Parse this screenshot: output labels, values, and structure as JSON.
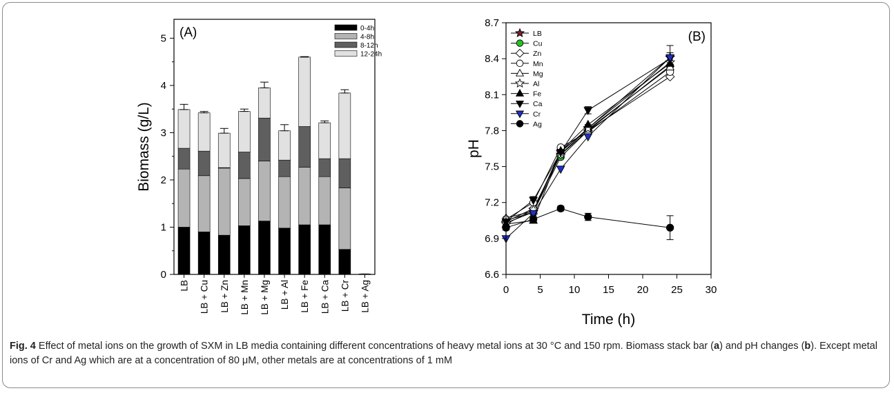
{
  "chart_data": [
    {
      "panel": "(A)",
      "type": "bar",
      "stacked": true,
      "ylabel": "Biomass (g/L)",
      "xlabel": "",
      "ylim": [
        0,
        5.4
      ],
      "yticks": [
        0,
        1,
        2,
        3,
        4,
        5
      ],
      "categories": [
        "LB",
        "LB + Cu",
        "LB + Zn",
        "LB + Mn",
        "LB + Mg",
        "LB + Al",
        "LB + Fe",
        "LB + Ca",
        "LB + Cr",
        "LB + Ag"
      ],
      "series": [
        {
          "name": "0-4h",
          "color": "#000000",
          "values": [
            1.0,
            0.9,
            0.83,
            1.03,
            1.13,
            0.98,
            1.05,
            1.05,
            0.53,
            0.0
          ]
        },
        {
          "name": "4-8h",
          "color": "#b4b4b4",
          "values": [
            1.23,
            1.19,
            1.42,
            1.0,
            1.27,
            1.09,
            1.22,
            1.02,
            1.3,
            0.0
          ]
        },
        {
          "name": "8-12h",
          "color": "#5f5f5f",
          "values": [
            0.44,
            0.52,
            0.01,
            0.56,
            0.91,
            0.35,
            0.86,
            0.38,
            0.62,
            0.0
          ]
        },
        {
          "name": "12-24h",
          "color": "#e1e1e1",
          "values": [
            0.82,
            0.81,
            0.73,
            0.86,
            0.64,
            0.62,
            1.47,
            0.76,
            1.39,
            0.01
          ]
        }
      ],
      "errors": [
        0.11,
        0.03,
        0.1,
        0.05,
        0.12,
        0.13,
        0.01,
        0.04,
        0.07,
        0.0
      ],
      "legend_position": "top-right"
    },
    {
      "panel": "(B)",
      "type": "line",
      "xlabel": "Time (h)",
      "ylabel": "pH",
      "xlim": [
        0,
        30
      ],
      "ylim": [
        6.6,
        8.7
      ],
      "xticks": [
        0,
        5,
        10,
        15,
        20,
        25,
        30
      ],
      "yticks": [
        6.6,
        6.9,
        7.2,
        7.5,
        7.8,
        8.1,
        8.4,
        8.7
      ],
      "x": [
        0,
        4,
        8,
        12,
        24
      ],
      "series": [
        {
          "name": "LB",
          "marker": "star",
          "fill": "#7b1e2b",
          "values": [
            7.03,
            7.12,
            7.62,
            7.82,
            8.41
          ]
        },
        {
          "name": "Cu",
          "marker": "circle",
          "fill": "#22c322",
          "values": [
            7.05,
            7.12,
            7.58,
            7.8,
            8.34
          ]
        },
        {
          "name": "Zn",
          "marker": "diamond",
          "fill": "#ffffff",
          "values": [
            7.04,
            7.15,
            7.6,
            7.8,
            8.25
          ]
        },
        {
          "name": "Mn",
          "marker": "circle",
          "fill": "#ffffff",
          "values": [
            7.06,
            7.2,
            7.66,
            7.79,
            8.29
          ]
        },
        {
          "name": "Mg",
          "marker": "triangle-up",
          "fill": "#ffffff",
          "values": [
            7.07,
            7.13,
            7.63,
            7.81,
            8.33
          ]
        },
        {
          "name": "Al",
          "marker": "star",
          "fill": "#ffffff",
          "values": [
            7.02,
            7.14,
            7.6,
            7.82,
            8.37
          ]
        },
        {
          "name": "Fe",
          "marker": "triangle-up",
          "fill": "#000000",
          "values": [
            7.02,
            7.05,
            7.63,
            7.85,
            8.36
          ]
        },
        {
          "name": "Ca",
          "marker": "triangle-down",
          "fill": "#000000",
          "values": [
            7.04,
            7.22,
            7.62,
            7.97,
            8.4
          ]
        },
        {
          "name": "Cr",
          "marker": "triangle-down",
          "fill": "#1f2ec4",
          "values": [
            6.9,
            7.11,
            7.48,
            7.75,
            8.41
          ]
        },
        {
          "name": "Ag",
          "marker": "circle",
          "fill": "#000000",
          "values": [
            6.99,
            7.06,
            7.15,
            7.08,
            6.99
          ]
        }
      ],
      "error_bars": {
        "LB": [
          0.02,
          0.02,
          0.02,
          0.03,
          0.1
        ],
        "Ag": [
          0.02,
          0.02,
          0.02,
          0.03,
          0.1
        ],
        "Ca": [
          0.02,
          0.03,
          0.02,
          0.03,
          0.05
        ]
      },
      "legend_position": "top-left"
    }
  ],
  "caption": {
    "fig_label": "Fig. 4",
    "text1": " Effect of metal ions on the growth of SXM in LB media containing different concentrations of heavy metal ions at 30 °C and 150 rpm. Biomass stack bar (",
    "a": "a",
    "text2": ") and pH changes (",
    "b": "b",
    "text3": "). Except metal ions of Cr and Ag which are at a concentration of 80 μM, other metals are at concentrations of 1 mM"
  }
}
